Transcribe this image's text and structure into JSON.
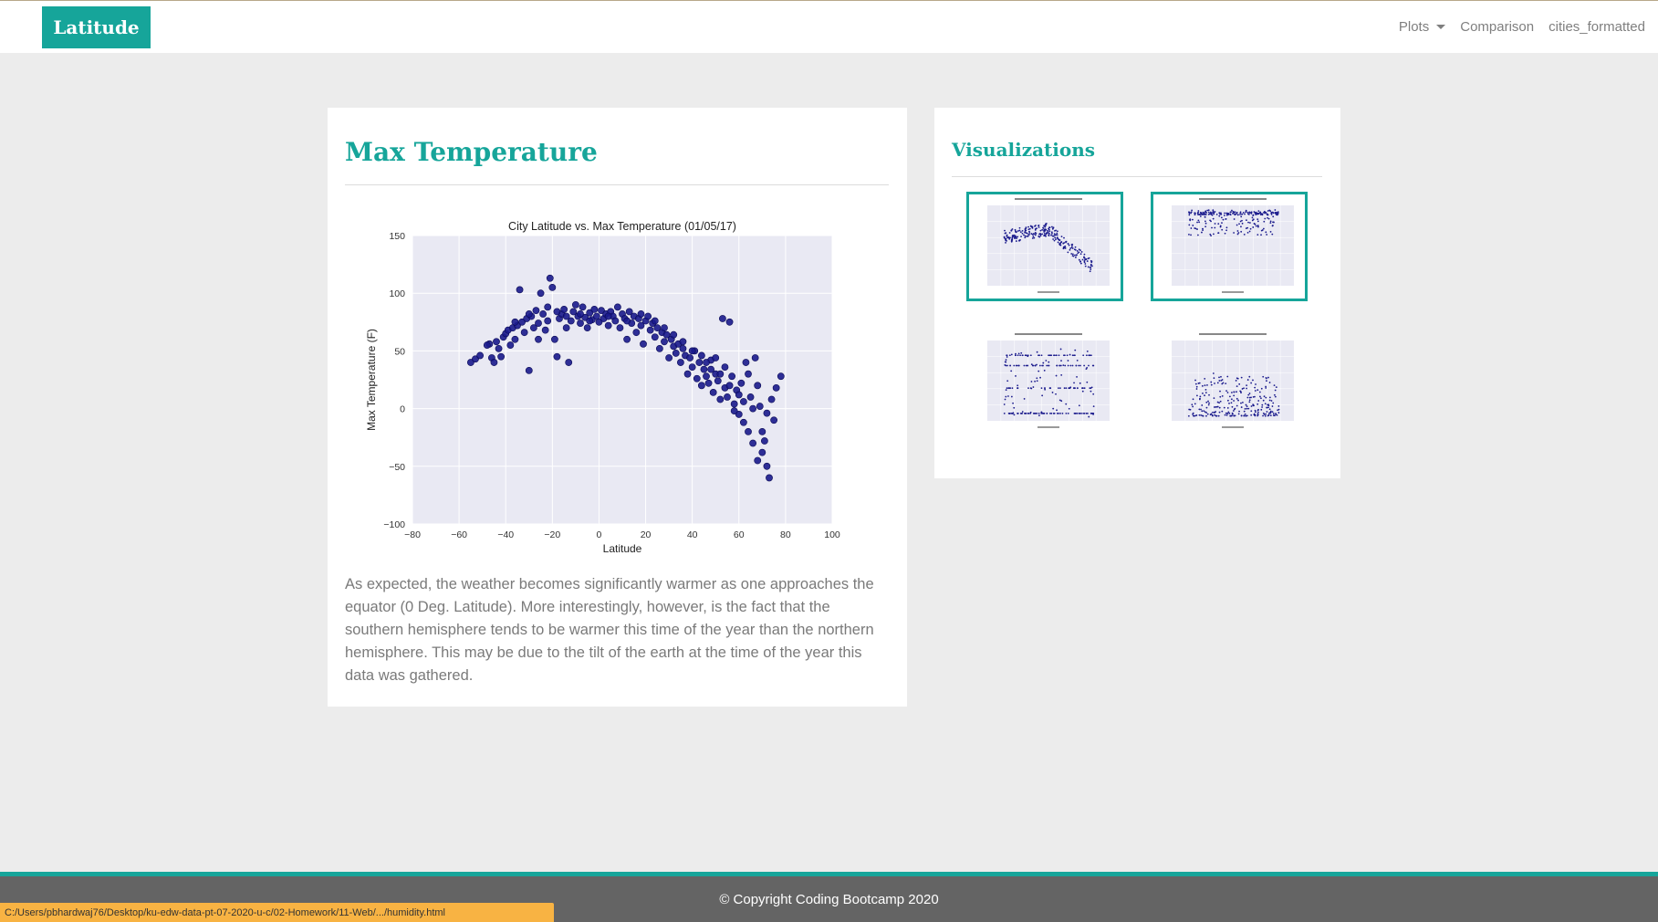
{
  "navbar": {
    "brand": "Latitude",
    "links": [
      {
        "label": "Plots",
        "dropdown": true
      },
      {
        "label": "Comparison",
        "dropdown": false
      },
      {
        "label": "cities_formatted",
        "dropdown": false
      }
    ]
  },
  "main_card": {
    "title": "Max Temperature",
    "description": "As expected, the weather becomes significantly warmer as one approaches the equator (0 Deg. Latitude). More interestingly, however, is the fact that the southern hemisphere tends to be warmer this time of the year than the northern hemisphere. This may be due to the tilt of the earth at the time of the year this data was gathered."
  },
  "viz_card": {
    "title": "Visualizations"
  },
  "footer": {
    "text": "© Copyright Coding Bootcamp 2020"
  },
  "status_bar": {
    "text": "C:/Users/pbhardwaj76/Desktop/ku-edw-data-pt-07-2020-u-c/02-Homework/11-Web/.../humidity.html"
  },
  "colors": {
    "accent": "#16a59a",
    "point": "#1a1a8c",
    "plot_bg": "#e9e9f3"
  },
  "chart_data": {
    "type": "scatter",
    "title": "City Latitude vs. Max Temperature (01/05/17)",
    "xlabel": "Latitude",
    "ylabel": "Max Temperature (F)",
    "xlim": [
      -80,
      100
    ],
    "ylim": [
      -100,
      150
    ],
    "xticks": [
      -80,
      -60,
      -40,
      -20,
      0,
      20,
      40,
      60,
      80,
      100
    ],
    "yticks": [
      -100,
      -50,
      0,
      50,
      100,
      150
    ],
    "grid": true,
    "points": [
      [
        -55,
        40
      ],
      [
        -53,
        43
      ],
      [
        -51,
        46
      ],
      [
        -47,
        56
      ],
      [
        -46,
        44
      ],
      [
        -45,
        40
      ],
      [
        -44,
        58
      ],
      [
        -42,
        45
      ],
      [
        -41,
        62
      ],
      [
        -40,
        65
      ],
      [
        -39,
        68
      ],
      [
        -38,
        55
      ],
      [
        -37,
        70
      ],
      [
        -36,
        60
      ],
      [
        -35,
        72
      ],
      [
        -34,
        103
      ],
      [
        -33,
        75
      ],
      [
        -32,
        66
      ],
      [
        -31,
        78
      ],
      [
        -30,
        33
      ],
      [
        -29,
        80
      ],
      [
        -28,
        70
      ],
      [
        -27,
        85
      ],
      [
        -26,
        74
      ],
      [
        -25,
        100
      ],
      [
        -24,
        82
      ],
      [
        -23,
        68
      ],
      [
        -22,
        88
      ],
      [
        -21,
        113
      ],
      [
        -20,
        105
      ],
      [
        -19,
        60
      ],
      [
        -18,
        45
      ],
      [
        -17,
        78
      ],
      [
        -16,
        82
      ],
      [
        -15,
        86
      ],
      [
        -14,
        70
      ],
      [
        -13,
        40
      ],
      [
        -12,
        76
      ],
      [
        -11,
        84
      ],
      [
        -10,
        90
      ],
      [
        -9,
        80
      ],
      [
        -8,
        74
      ],
      [
        -7,
        88
      ],
      [
        -6,
        79
      ],
      [
        -5,
        70
      ],
      [
        -4,
        83
      ],
      [
        -3,
        77
      ],
      [
        -2,
        86
      ],
      [
        -1,
        80
      ],
      [
        0,
        75
      ],
      [
        1,
        85
      ],
      [
        2,
        78
      ],
      [
        3,
        82
      ],
      [
        4,
        72
      ],
      [
        5,
        84
      ],
      [
        6,
        80
      ],
      [
        7,
        76
      ],
      [
        8,
        88
      ],
      [
        9,
        70
      ],
      [
        10,
        82
      ],
      [
        11,
        78
      ],
      [
        12,
        60
      ],
      [
        13,
        84
      ],
      [
        14,
        74
      ],
      [
        15,
        80
      ],
      [
        16,
        66
      ],
      [
        17,
        78
      ],
      [
        18,
        72
      ],
      [
        19,
        56
      ],
      [
        20,
        76
      ],
      [
        21,
        80
      ],
      [
        22,
        68
      ],
      [
        23,
        74
      ],
      [
        24,
        62
      ],
      [
        25,
        70
      ],
      [
        26,
        52
      ],
      [
        27,
        66
      ],
      [
        28,
        58
      ],
      [
        29,
        64
      ],
      [
        30,
        44
      ],
      [
        31,
        60
      ],
      [
        32,
        54
      ],
      [
        33,
        48
      ],
      [
        34,
        56
      ],
      [
        35,
        40
      ],
      [
        36,
        52
      ],
      [
        37,
        46
      ],
      [
        38,
        30
      ],
      [
        39,
        44
      ],
      [
        40,
        36
      ],
      [
        41,
        50
      ],
      [
        42,
        26
      ],
      [
        43,
        40
      ],
      [
        44,
        20
      ],
      [
        45,
        34
      ],
      [
        46,
        28
      ],
      [
        47,
        22
      ],
      [
        48,
        42
      ],
      [
        49,
        14
      ],
      [
        50,
        30
      ],
      [
        51,
        24
      ],
      [
        52,
        8
      ],
      [
        53,
        78
      ],
      [
        54,
        18
      ],
      [
        55,
        10
      ],
      [
        56,
        75
      ],
      [
        57,
        28
      ],
      [
        58,
        4
      ],
      [
        59,
        16
      ],
      [
        60,
        -5
      ],
      [
        61,
        22
      ],
      [
        62,
        -12
      ],
      [
        63,
        40
      ],
      [
        64,
        -20
      ],
      [
        65,
        10
      ],
      [
        66,
        -30
      ],
      [
        67,
        44
      ],
      [
        68,
        -45
      ],
      [
        69,
        2
      ],
      [
        70,
        -38
      ],
      [
        71,
        -28
      ],
      [
        72,
        -50
      ],
      [
        73,
        -60
      ],
      [
        74,
        8
      ],
      [
        75,
        -10
      ],
      [
        76,
        18
      ],
      [
        78,
        28
      ],
      [
        -48,
        55
      ],
      [
        -43,
        52
      ],
      [
        -36,
        75
      ],
      [
        -30,
        82
      ],
      [
        -26,
        60
      ],
      [
        -22,
        76
      ],
      [
        -18,
        84
      ],
      [
        -14,
        80
      ],
      [
        -8,
        82
      ],
      [
        -4,
        76
      ],
      [
        4,
        80
      ],
      [
        12,
        76
      ],
      [
        18,
        82
      ],
      [
        24,
        76
      ],
      [
        28,
        70
      ],
      [
        32,
        64
      ],
      [
        36,
        58
      ],
      [
        40,
        50
      ],
      [
        44,
        46
      ],
      [
        48,
        34
      ],
      [
        52,
        30
      ],
      [
        56,
        20
      ],
      [
        60,
        12
      ],
      [
        64,
        30
      ],
      [
        66,
        0
      ],
      [
        68,
        20
      ],
      [
        70,
        -20
      ],
      [
        72,
        -4
      ],
      [
        62,
        6
      ],
      [
        58,
        -2
      ],
      [
        54,
        36
      ],
      [
        50,
        44
      ],
      [
        46,
        40
      ]
    ]
  }
}
